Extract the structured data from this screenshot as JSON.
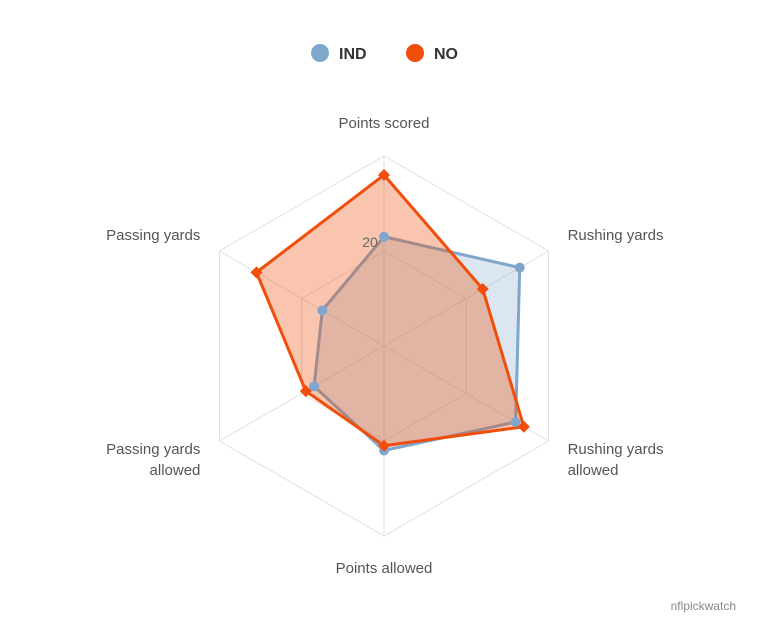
{
  "chart_data": {
    "type": "radar",
    "categories": [
      "Points scored",
      "Rushing yards",
      "Rushing yards allowed",
      "Points allowed",
      "Passing yards allowed",
      "Passing yards"
    ],
    "category_lines": [
      [
        "Points scored"
      ],
      [
        "Rushing yards"
      ],
      [
        "Rushing yards",
        "allowed"
      ],
      [
        "Points allowed"
      ],
      [
        "Passing yards",
        "allowed"
      ],
      [
        "Passing yards"
      ]
    ],
    "radial_tick": "20",
    "radial_max": 40,
    "series": [
      {
        "name": "IND",
        "color": "#7fa7cc",
        "marker": "circle",
        "values": [
          23,
          33,
          32,
          22,
          17,
          15
        ]
      },
      {
        "name": "NO",
        "color": "#f04e0a",
        "marker": "diamond",
        "values": [
          36,
          24,
          34,
          21,
          19,
          31
        ]
      }
    ],
    "legend_position": "top-center",
    "grid": true
  },
  "credit": "nflpickwatch"
}
